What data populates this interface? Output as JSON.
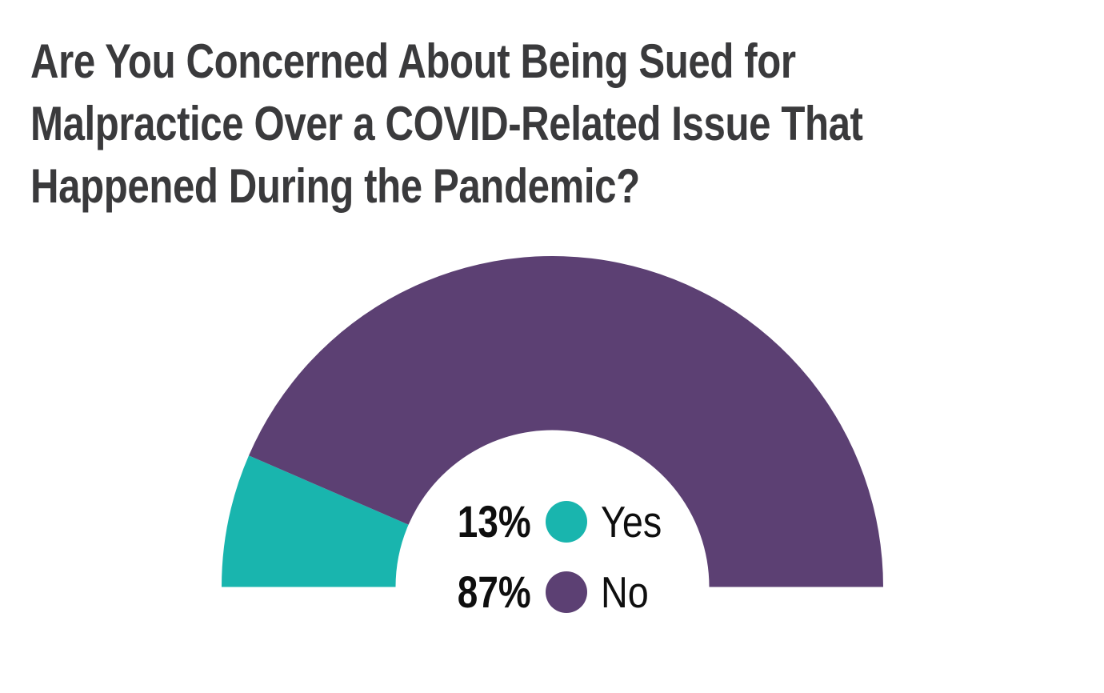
{
  "page": {
    "background": "#ffffff"
  },
  "title": {
    "text": "Are You Concerned About Being Sued for Malpractice Over a COVID-Related Issue That Happened During the Pandemic?",
    "lines": [
      "Are You Concerned About Being Sued for",
      "Malpractice Over a COVID-Related Issue That",
      "Happened During the Pandemic?"
    ],
    "color": "#3A3A3C"
  },
  "chart_data": {
    "type": "pie",
    "subtype": "half-donut",
    "title": "Are You Concerned About Being Sued for Malpractice Over a COVID-Related Issue That Happened During the Pandemic?",
    "start_angle_deg": 180,
    "end_angle_deg": 0,
    "legend_position": "center-inside-hole",
    "segments": [
      {
        "label": "Yes",
        "value": 13,
        "display": "13%",
        "color": "#19B5AE"
      },
      {
        "label": "No",
        "value": 87,
        "display": "87%",
        "color": "#5C4073"
      }
    ]
  }
}
